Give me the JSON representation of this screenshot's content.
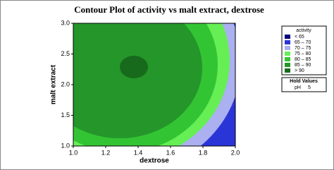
{
  "chart_data": {
    "type": "contour",
    "title": "Contour Plot of activity vs malt extract, dextrose",
    "x_label": "dextrose",
    "y_label": "malt extract",
    "xlim": [
      1,
      2
    ],
    "xticks": [
      {
        "value": 1,
        "label": "1.0"
      },
      1.2,
      1.4,
      1.6,
      1.8,
      {
        "value": 2,
        "label": "2.0"
      }
    ],
    "ylim": [
      1,
      3
    ],
    "yticks": [
      {
        "value": 1,
        "label": "1.0"
      },
      1.5,
      {
        "value": 2,
        "label": "2.0"
      },
      2.5,
      {
        "value": 3,
        "label": "3.0"
      }
    ],
    "levels": [
      65,
      70,
      75,
      80,
      85,
      90
    ],
    "legend_title": "activity",
    "series": [
      {
        "name": "< 65",
        "color": "#000080"
      },
      {
        "name": "65 – 70",
        "color": "#2a35d8"
      },
      {
        "name": "70 – 75",
        "color": "#aab0f0"
      },
      {
        "name": "75 – 80",
        "color": "#66ee55"
      },
      {
        "name": "80 – 85",
        "color": "#33c433"
      },
      {
        "name": "85 – 90",
        "color": "#24962a"
      },
      {
        "name": "> 90",
        "color": "#176a1c"
      }
    ],
    "hold_values": {
      "title": "Hold Values",
      "items": [
        {
          "name": "pH",
          "value": 5
        }
      ]
    }
  }
}
